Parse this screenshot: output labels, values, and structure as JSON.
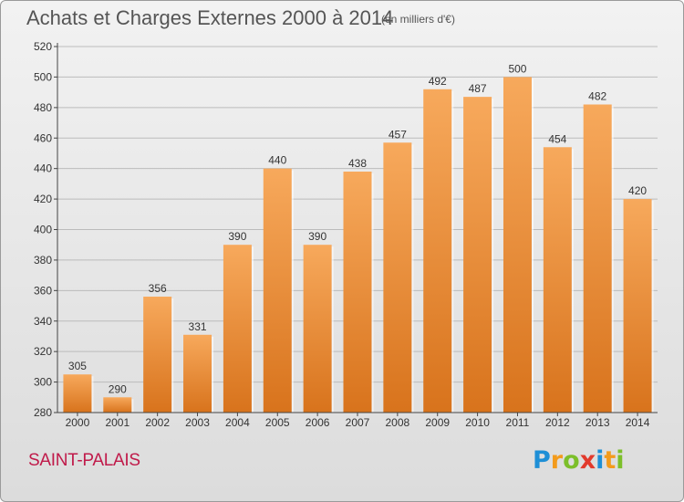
{
  "header": {
    "title": "Achats et Charges Externes 2000 à 2014",
    "unit": "(en milliers d'€)"
  },
  "footer": {
    "commune": "SAINT-PALAIS",
    "logo": "Proxiti"
  },
  "colors": {
    "bar_light": "#f7a95c",
    "bar_dark": "#d8731c",
    "axis": "#444444",
    "grid": "#bbbbbb",
    "commune": "#c01a4a"
  },
  "chart_data": {
    "type": "bar",
    "title": "Achats et Charges Externes 2000 à 2014",
    "subtitle": "(en milliers d'€)",
    "categories": [
      "2000",
      "2001",
      "2002",
      "2003",
      "2004",
      "2005",
      "2006",
      "2007",
      "2008",
      "2009",
      "2010",
      "2011",
      "2012",
      "2013",
      "2014"
    ],
    "values": [
      305,
      290,
      356,
      331,
      390,
      440,
      390,
      438,
      457,
      492,
      487,
      500,
      454,
      482,
      420
    ],
    "ylim": [
      280,
      520
    ],
    "yticks": [
      280,
      300,
      320,
      340,
      360,
      380,
      400,
      420,
      440,
      460,
      480,
      500,
      520
    ],
    "grid": true,
    "legend": "none"
  }
}
